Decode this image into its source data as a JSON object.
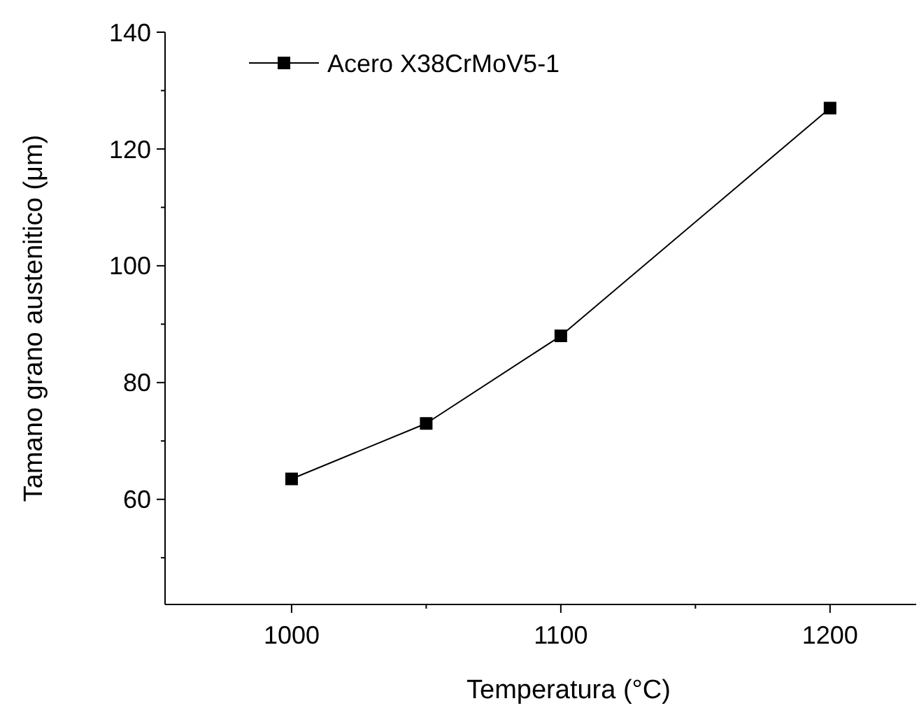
{
  "chart_data": {
    "type": "line",
    "xlabel": "Temperatura (°C)",
    "ylabel": "Tamano grano austenitico (μm)",
    "x": [
      1000,
      1050,
      1100,
      1200
    ],
    "series": [
      {
        "name": "Acero X38CrMoV5-1",
        "color": "#000000",
        "values": [
          63.5,
          73,
          88,
          127
        ]
      }
    ],
    "xlim": [
      953,
      1232
    ],
    "xticks": [
      1000,
      {
        "value": 1050,
        "label": null
      },
      1100,
      {
        "value": 1150,
        "label": null
      },
      1200
    ],
    "ylim": [
      42,
      140
    ],
    "yticks": [
      {
        "value": 50,
        "label": null
      },
      60,
      {
        "value": 70,
        "label": null
      },
      80,
      {
        "value": 90,
        "label": null
      },
      100,
      {
        "value": 110,
        "label": null
      },
      120,
      {
        "value": 130,
        "label": null
      },
      140
    ],
    "grid": false,
    "legend": "top left",
    "marker": "square",
    "line_style": "solid"
  }
}
